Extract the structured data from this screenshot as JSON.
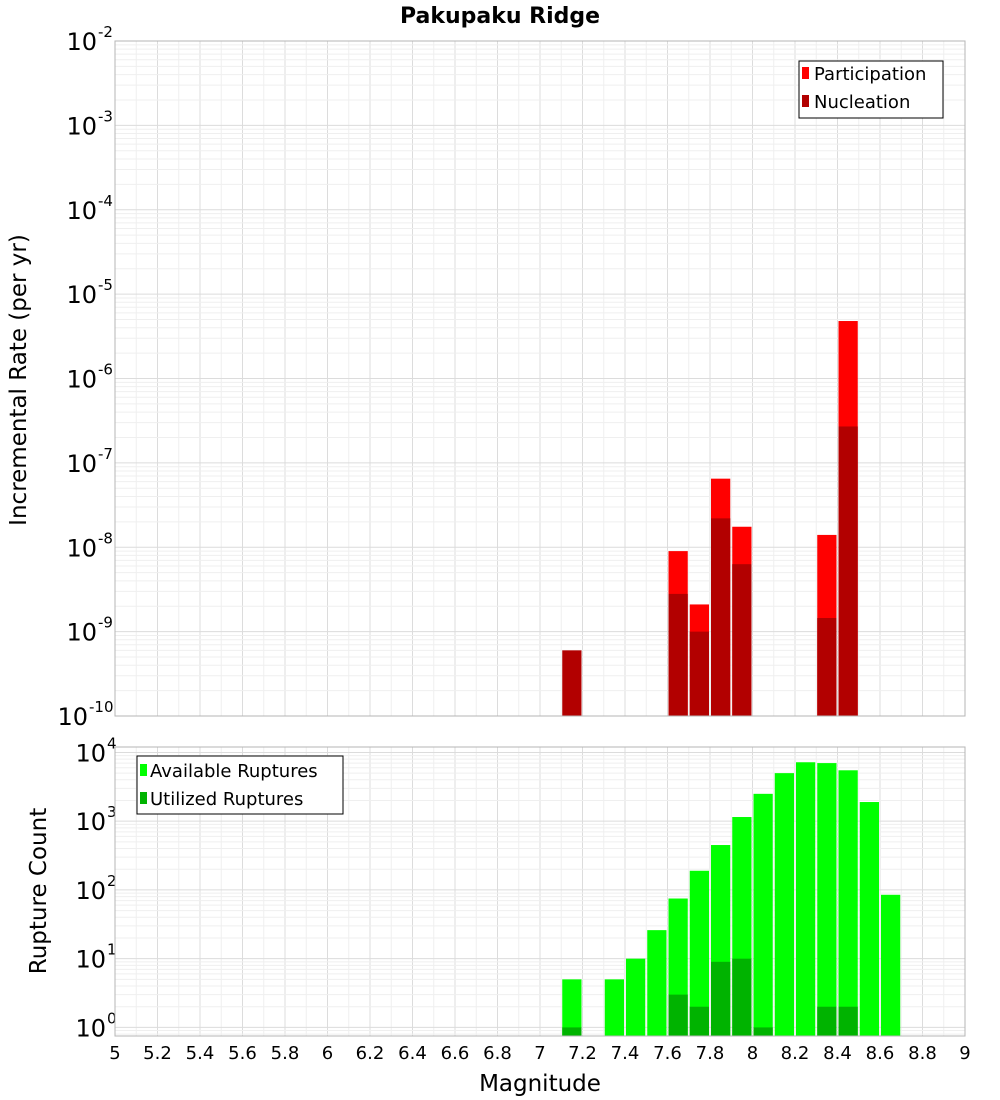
{
  "chart_data": [
    {
      "type": "bar",
      "title": "Pakupaku Ridge",
      "xlabel": "",
      "ylabel": "Incremental Rate (per yr)",
      "yscale": "log",
      "ylim": [
        1e-10,
        0.01
      ],
      "xlim": [
        5,
        9
      ],
      "bar_width": 0.1,
      "ytick_exponents": [
        -10,
        -9,
        -8,
        -7,
        -6,
        -5,
        -4,
        -3,
        -2
      ],
      "grid": true,
      "legend_position": "top-right",
      "overlay": true,
      "series": [
        {
          "name": "Participation",
          "color": "#ff0000",
          "x": [
            7.65,
            7.75,
            7.85,
            7.95,
            8.35,
            8.45
          ],
          "values": [
            9e-09,
            2.1e-09,
            6.5e-08,
            1.75e-08,
            1.4e-08,
            4.8e-06
          ]
        },
        {
          "name": "Nucleation",
          "color": "#b20000",
          "x": [
            7.15,
            7.65,
            7.75,
            7.85,
            7.95,
            8.35,
            8.45
          ],
          "values": [
            6e-10,
            2.8e-09,
            1e-09,
            2.2e-08,
            6.3e-09,
            1.45e-09,
            2.7e-07
          ]
        }
      ]
    },
    {
      "type": "bar",
      "title": "",
      "xlabel": "Magnitude",
      "ylabel": "Rupture Count",
      "yscale": "log",
      "ylim": [
        0.75,
        12000
      ],
      "xlim": [
        5,
        9
      ],
      "bar_width": 0.1,
      "ytick_exponents": [
        0,
        1,
        2,
        3,
        4
      ],
      "x_ticks": [
        "5",
        "5.2",
        "5.4",
        "5.6",
        "5.8",
        "6",
        "6.2",
        "6.4",
        "6.6",
        "6.8",
        "7",
        "7.2",
        "7.4",
        "7.6",
        "7.8",
        "8",
        "8.2",
        "8.4",
        "8.6",
        "8.8",
        "9"
      ],
      "grid": true,
      "legend_position": "top-left",
      "overlay": true,
      "series": [
        {
          "name": "Available Ruptures",
          "color": "#00ff00",
          "x": [
            7.15,
            7.35,
            7.45,
            7.55,
            7.65,
            7.75,
            7.85,
            7.95,
            8.05,
            8.15,
            8.25,
            8.35,
            8.45,
            8.55,
            8.65
          ],
          "values": [
            5,
            5,
            10,
            26,
            75,
            190,
            450,
            1150,
            2500,
            5000,
            7200,
            7000,
            5500,
            1900,
            85
          ]
        },
        {
          "name": "Utilized Ruptures",
          "color": "#00b300",
          "x": [
            7.15,
            7.65,
            7.75,
            7.85,
            7.95,
            8.05,
            8.35,
            8.45
          ],
          "values": [
            1,
            3,
            2,
            9,
            10,
            1,
            2,
            2
          ]
        }
      ]
    }
  ]
}
